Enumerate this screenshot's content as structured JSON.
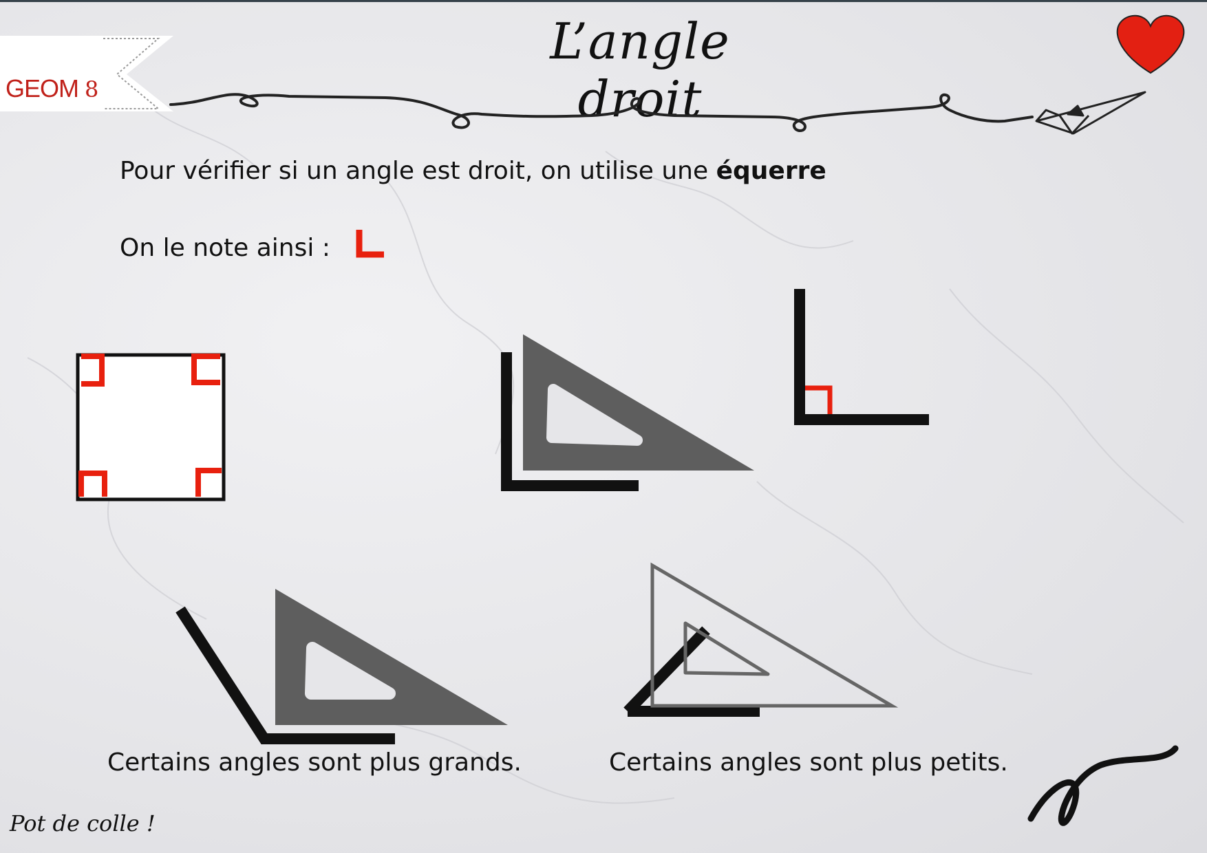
{
  "header": {
    "label": "GEOM",
    "number": "8",
    "title": "L’angle droit"
  },
  "body": {
    "line1_pre": "Pour vérifier si un angle est droit, on utilise une ",
    "line1_bold": "équerre",
    "line2": "On le note ainsi :"
  },
  "captions": {
    "bigger": "Certains angles sont plus grands.",
    "smaller": "Certains angles sont plus petits."
  },
  "footer": {
    "signature": "Pot de colle !"
  },
  "icons": [
    "heart-icon",
    "paper-plane-icon",
    "right-angle-mark-icon",
    "set-square-icon"
  ],
  "colors": {
    "accent": "#e8200e",
    "ink": "#111111",
    "set_square": "#5e5e5e",
    "heart": "#e32012"
  }
}
